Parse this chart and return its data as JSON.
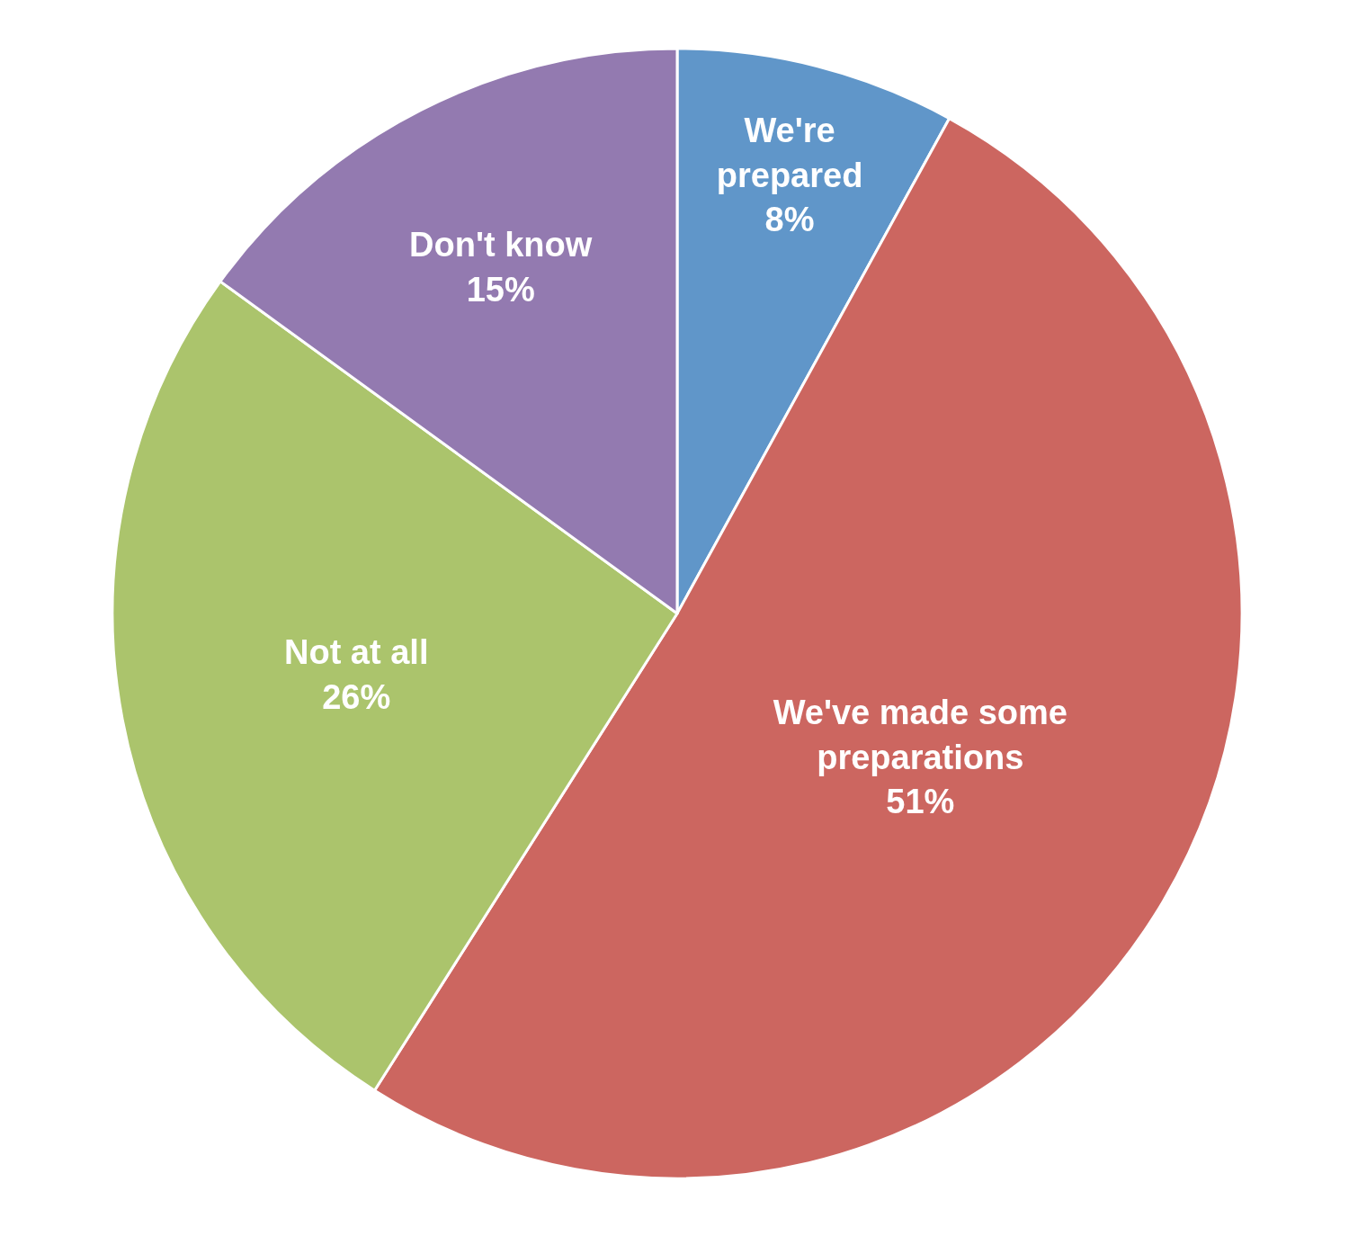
{
  "chart_data": {
    "type": "pie",
    "categories": [
      "We're prepared",
      "We've made some preparations",
      "Not at all",
      "Don't know"
    ],
    "values": [
      8,
      51,
      26,
      15
    ],
    "value_labels": [
      "8%",
      "51%",
      "26%",
      "15%"
    ],
    "colors": [
      "#6096c9",
      "#cc6660",
      "#abc46c",
      "#937ab0"
    ],
    "legend": false
  }
}
